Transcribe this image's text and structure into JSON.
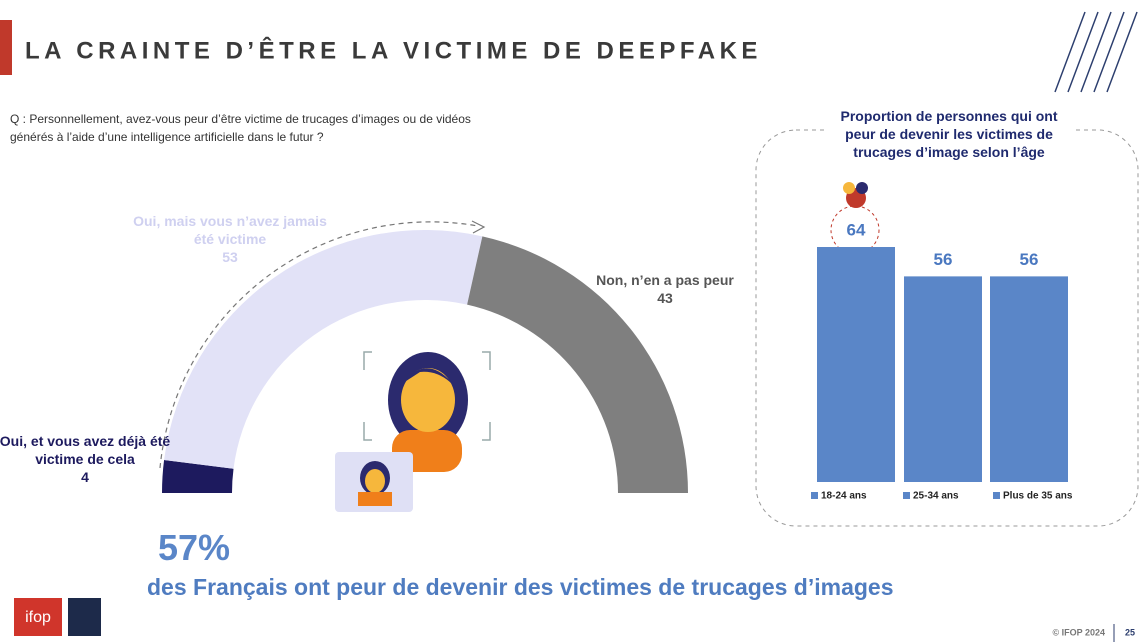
{
  "header": {
    "title": "LA CRAINTE D’ÊTRE LA VICTIME DE DEEPFAKE",
    "question": "Q : Personnellement, avez-vous peur d’être victime de trucages d’images ou de vidéos générés à l’aide d’une intelligence artificielle dans le futur ?"
  },
  "chart_data": [
    {
      "type": "gauge",
      "categories": [
        "Oui, et vous avez déjà été victime de cela",
        "Oui, mais vous n’avez jamais été victime",
        "Non, n’en a pas peur"
      ],
      "values": [
        4,
        53,
        43
      ],
      "colors": [
        "#1d1a5e",
        "#e2e2f7",
        "#7f7f7f"
      ]
    },
    {
      "type": "bar",
      "title": "Proportion de personnes qui ont peur de devenir les victimes de trucages d’image selon l’âge",
      "categories": [
        "18-24 ans",
        "25-34 ans",
        "Plus de 35 ans"
      ],
      "values": [
        64,
        56,
        56
      ],
      "color": "#5a86c8",
      "legend": "bottom"
    }
  ],
  "headline": {
    "figure": "57%",
    "text": "des Français ont peur de devenir des victimes de trucages d’images"
  },
  "footer": {
    "logo": "ifop",
    "copyright": "© IFOP 2024",
    "page": "25"
  }
}
